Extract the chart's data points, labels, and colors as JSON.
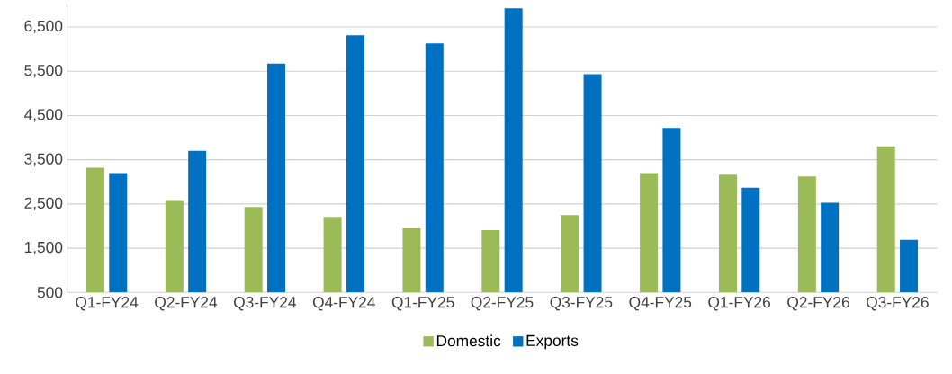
{
  "chart_data": {
    "type": "bar",
    "categories": [
      "Q1-FY24",
      "Q2-FY24",
      "Q3-FY24",
      "Q4-FY24",
      "Q1-FY25",
      "Q2-FY25",
      "Q3-FY25",
      "Q4-FY25",
      "Q1-FY26",
      "Q2-FY26",
      "Q3-FY26"
    ],
    "series": [
      {
        "name": "Domestic",
        "color": "#9bbb59",
        "values": [
          3320,
          2570,
          2430,
          2210,
          1950,
          1910,
          2250,
          3200,
          3160,
          3120,
          3800
        ]
      },
      {
        "name": "Exports",
        "color": "#0070c0",
        "values": [
          3200,
          3700,
          5670,
          6310,
          6130,
          6920,
          5430,
          4220,
          2870,
          2530,
          1690
        ]
      }
    ],
    "ylim": [
      500,
      7000
    ],
    "yticks": [
      {
        "value": 500,
        "label": "500"
      },
      {
        "value": 1500,
        "label": "1,500"
      },
      {
        "value": 2500,
        "label": "2,500"
      },
      {
        "value": 3500,
        "label": "3,500"
      },
      {
        "value": 4500,
        "label": "4,500"
      },
      {
        "value": 5500,
        "label": "5,500"
      },
      {
        "value": 6500,
        "label": "6,500"
      }
    ],
    "grid": "y",
    "legend": "bottom"
  }
}
